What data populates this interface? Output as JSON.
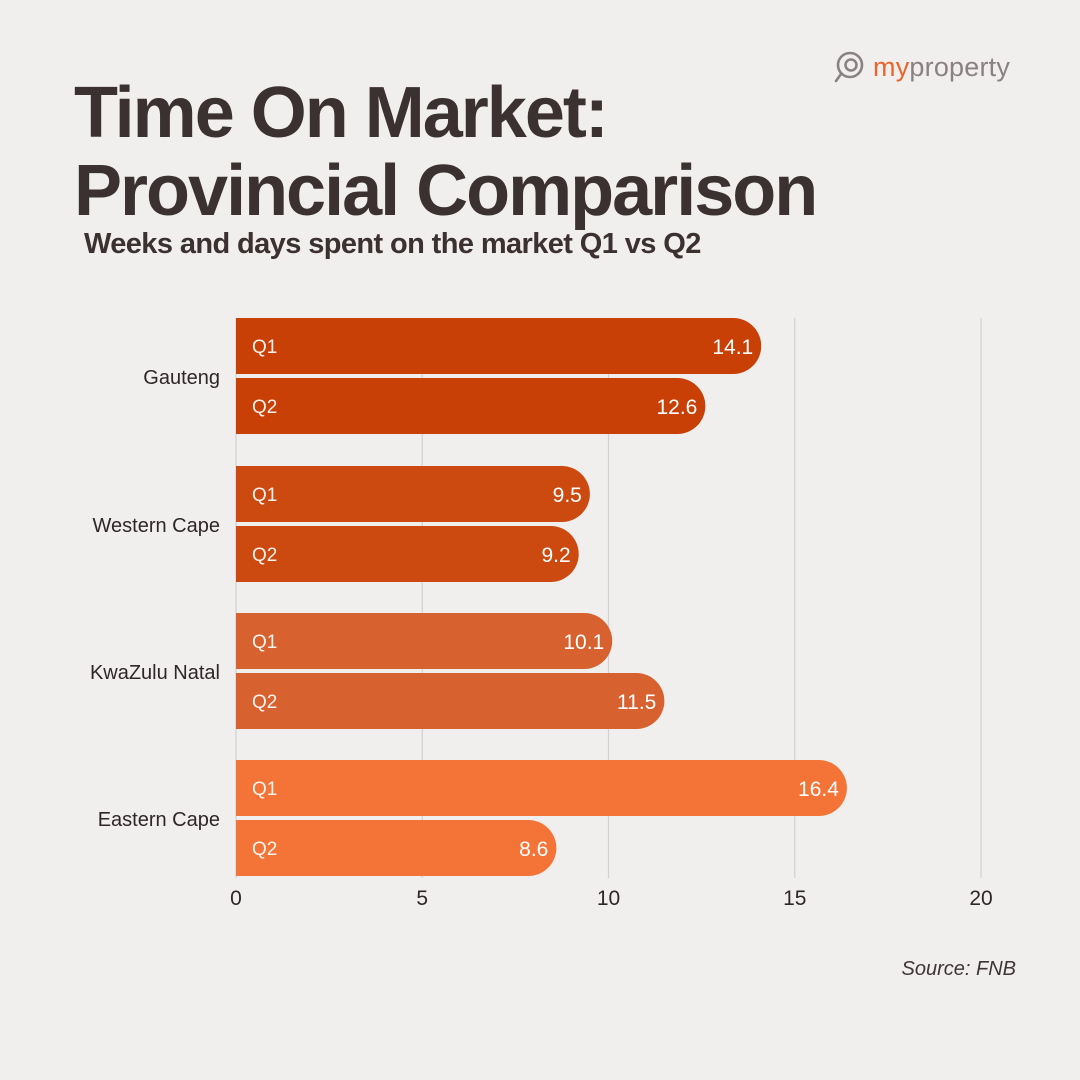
{
  "brand": {
    "logo_text_part1": "my",
    "logo_text_part2": "property",
    "accent_color": "#e9652b"
  },
  "title_line1": "Time On Market:",
  "title_line2": "Provincial Comparison",
  "subtitle": "Weeks and days spent on the market Q1 vs Q2",
  "source": "Source: FNB",
  "chart_data": {
    "type": "bar",
    "orientation": "horizontal",
    "title": "Time On Market: Provincial Comparison",
    "subtitle": "Weeks and days spent on the market Q1 vs Q2",
    "categories": [
      "Gauteng",
      "Western Cape",
      "KwaZulu Natal",
      "Eastern Cape"
    ],
    "bar_labels": [
      "Q1",
      "Q2"
    ],
    "values": [
      [
        14.1,
        12.6
      ],
      [
        9.5,
        9.2
      ],
      [
        10.1,
        11.5
      ],
      [
        16.4,
        8.6
      ]
    ],
    "value_labels": [
      [
        "14.1",
        "12.6"
      ],
      [
        "9.5",
        "9.2"
      ],
      [
        "10.1",
        "11.5"
      ],
      [
        "16.4",
        "8.6"
      ]
    ],
    "category_colors": [
      "#c84005",
      "#cc4a10",
      "#d7612f",
      "#f37436"
    ],
    "xlim": [
      0,
      20
    ],
    "xticks": [
      0,
      5,
      10,
      15,
      20
    ],
    "xlabel": "",
    "ylabel": "",
    "grid": "vertical",
    "legend": "none"
  }
}
